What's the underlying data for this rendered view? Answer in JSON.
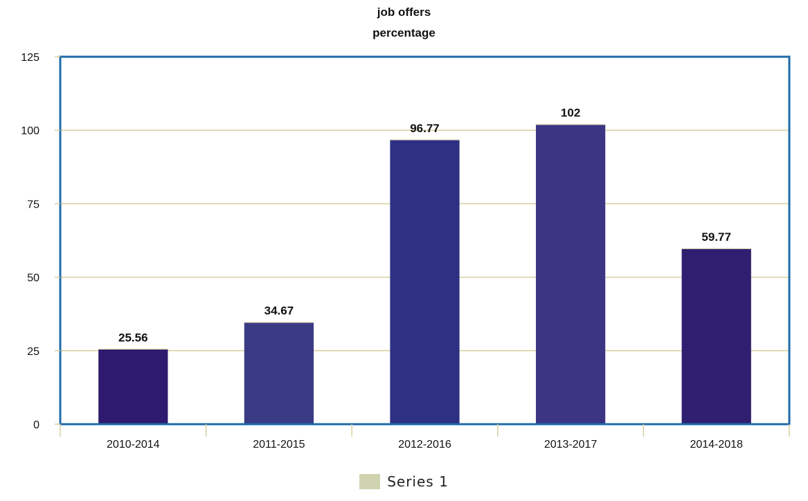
{
  "chart_data": {
    "type": "bar",
    "title_lines": [
      "job offers",
      "percentage"
    ],
    "categories": [
      "2010-2014",
      "2011-2015",
      "2012-2016",
      "2013-2017",
      "2014-2018"
    ],
    "series": [
      {
        "name": "Series 1",
        "values": [
          25.56,
          34.67,
          96.77,
          102,
          59.77
        ],
        "data_labels": [
          "25.56",
          "34.67",
          "96.77",
          "102",
          "59.77"
        ],
        "bar_colors": [
          "#2e1a6e",
          "#3a3a85",
          "#2e3084",
          "#3b3584",
          "#2e1f70"
        ]
      }
    ],
    "y_ticks": [
      0,
      25,
      50,
      75,
      100,
      125
    ],
    "ylim": [
      0,
      125
    ],
    "grid": true,
    "legend": {
      "position": "bottom",
      "label": "Series 1",
      "swatch_color": "#cfd3b0"
    },
    "colors": {
      "frame": "#1f6aa8",
      "grid": "#d7cf9e",
      "axis_text": "#111111"
    }
  }
}
